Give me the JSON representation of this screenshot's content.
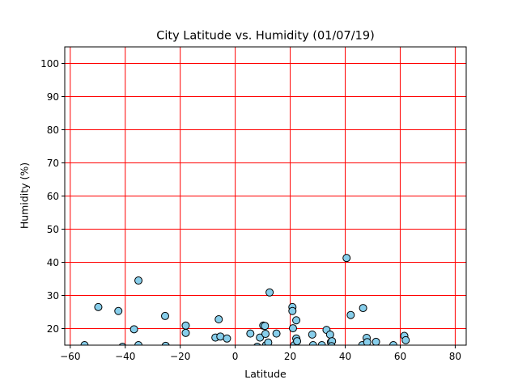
{
  "chart_data": {
    "type": "scatter",
    "title": "City Latitude vs. Humidity (01/07/19)",
    "xlabel": "Latitude",
    "ylabel": "Humidity (%)",
    "xlim": [
      -62,
      84
    ],
    "ylim": [
      15,
      105
    ],
    "xticks": [
      -60,
      -40,
      -20,
      0,
      20,
      40,
      60,
      80
    ],
    "yticks": [
      20,
      30,
      40,
      50,
      60,
      70,
      80,
      90,
      100
    ],
    "grid": true,
    "colors": {
      "grid": "#ff0000",
      "marker_fill": "#87ceeb",
      "marker_edge": "#000000"
    },
    "points": [
      [
        -54.8,
        15.0
      ],
      [
        -49.8,
        26.5
      ],
      [
        -42.5,
        25.3
      ],
      [
        -41.0,
        14.5
      ],
      [
        -36.8,
        19.8
      ],
      [
        -35.2,
        34.5
      ],
      [
        -35.2,
        15.0
      ],
      [
        -25.5,
        23.8
      ],
      [
        -25.3,
        14.8
      ],
      [
        -18.0,
        20.9
      ],
      [
        -18.0,
        18.7
      ],
      [
        -7.2,
        17.3
      ],
      [
        -6.0,
        22.8
      ],
      [
        -5.4,
        17.6
      ],
      [
        -3.0,
        17.0
      ],
      [
        5.5,
        18.5
      ],
      [
        8.0,
        14.5
      ],
      [
        9.0,
        17.3
      ],
      [
        10.2,
        20.9
      ],
      [
        10.8,
        20.8
      ],
      [
        11.0,
        18.4
      ],
      [
        11.2,
        15.0
      ],
      [
        12.0,
        15.8
      ],
      [
        12.5,
        30.9
      ],
      [
        15.0,
        18.5
      ],
      [
        20.8,
        26.5
      ],
      [
        20.8,
        25.3
      ],
      [
        21.0,
        20.1
      ],
      [
        21.5,
        15.0
      ],
      [
        22.2,
        22.5
      ],
      [
        22.2,
        17.0
      ],
      [
        22.5,
        16.2
      ],
      [
        28.0,
        18.2
      ],
      [
        28.3,
        15.0
      ],
      [
        31.5,
        15.0
      ],
      [
        33.2,
        19.6
      ],
      [
        34.5,
        18.2
      ],
      [
        34.8,
        15.9
      ],
      [
        35.2,
        16.2
      ],
      [
        35.0,
        14.7
      ],
      [
        40.5,
        41.3
      ],
      [
        42.0,
        24.1
      ],
      [
        46.2,
        15.0
      ],
      [
        46.5,
        26.2
      ],
      [
        47.8,
        17.2
      ],
      [
        48.0,
        15.9
      ],
      [
        51.2,
        16.0
      ],
      [
        57.5,
        15.0
      ],
      [
        61.5,
        17.8
      ],
      [
        62.0,
        16.5
      ]
    ]
  }
}
